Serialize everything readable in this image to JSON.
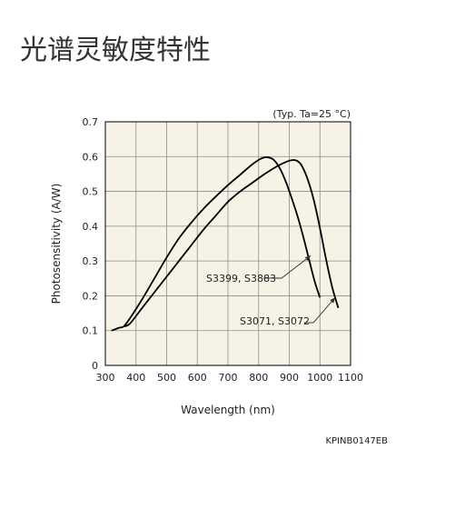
{
  "page": {
    "title": "光谱灵敏度特性"
  },
  "chart_data": {
    "type": "line",
    "title": "",
    "condition_note": "(Typ. Ta=25 °C)",
    "xlabel": "Wavelength (nm)",
    "ylabel": "Photosensitivity (A/W)",
    "xlim": [
      300,
      1100
    ],
    "ylim": [
      0,
      0.7
    ],
    "x_ticks": [
      300,
      400,
      500,
      600,
      700,
      800,
      900,
      1000,
      1100
    ],
    "y_ticks": [
      0,
      0.1,
      0.2,
      0.3,
      0.4,
      0.5,
      0.6,
      0.7
    ],
    "grid": true,
    "legend": "inline annotations",
    "series": [
      {
        "name": "S3399, S3883",
        "x": [
          320,
          345,
          360,
          380,
          420,
          460,
          500,
          540,
          580,
          620,
          660,
          700,
          740,
          780,
          810,
          830,
          850,
          870,
          890,
          910,
          930,
          950,
          970,
          985,
          1000
        ],
        "y": [
          0.1,
          0.108,
          0.112,
          0.135,
          0.19,
          0.25,
          0.31,
          0.365,
          0.41,
          0.45,
          0.485,
          0.518,
          0.548,
          0.578,
          0.595,
          0.598,
          0.59,
          0.565,
          0.525,
          0.475,
          0.42,
          0.355,
          0.285,
          0.235,
          0.195
        ]
      },
      {
        "name": "S3071, S3072",
        "x": [
          360,
          380,
          420,
          460,
          500,
          540,
          580,
          620,
          660,
          700,
          740,
          780,
          820,
          860,
          890,
          910,
          925,
          940,
          960,
          980,
          1000,
          1020,
          1040,
          1060
        ],
        "y": [
          0.112,
          0.12,
          0.165,
          0.21,
          0.255,
          0.3,
          0.345,
          0.39,
          0.43,
          0.47,
          0.5,
          0.525,
          0.55,
          0.572,
          0.585,
          0.59,
          0.588,
          0.575,
          0.535,
          0.475,
          0.395,
          0.305,
          0.225,
          0.165
        ]
      }
    ],
    "annotations": [
      {
        "text": "S3399, S3883",
        "points_to_series": 0,
        "arrow_to": {
          "x": 970,
          "y": 0.315
        }
      },
      {
        "text": "S3071, S3072",
        "points_to_series": 1,
        "arrow_to": {
          "x": 1050,
          "y": 0.195
        }
      }
    ],
    "code": "KPINB0147EB",
    "colors": {
      "plot_bg": "#f6f2e6",
      "line": "#000000",
      "grid": "#8c8c8c"
    }
  }
}
